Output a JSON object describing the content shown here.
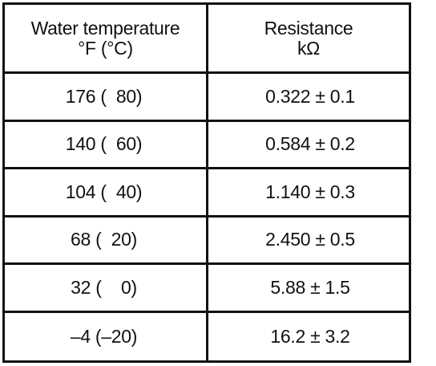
{
  "table": {
    "headers": [
      {
        "line1": "Water temperature",
        "line2": "°F (°C)"
      },
      {
        "line1": "Resistance",
        "line2": "kΩ"
      }
    ],
    "rows": [
      {
        "temperature": "176 (  80)",
        "resistance": "0.322 ± 0.1"
      },
      {
        "temperature": "140 (  60)",
        "resistance": "0.584 ± 0.2"
      },
      {
        "temperature": "104 (  40)",
        "resistance": "1.140 ± 0.3"
      },
      {
        "temperature": "68 (  20)",
        "resistance": "2.450 ± 0.5"
      },
      {
        "temperature": "32 (    0)",
        "resistance": "5.88 ± 1.5"
      },
      {
        "temperature": "–4 (–20)",
        "resistance": "16.2 ± 3.2"
      }
    ]
  }
}
